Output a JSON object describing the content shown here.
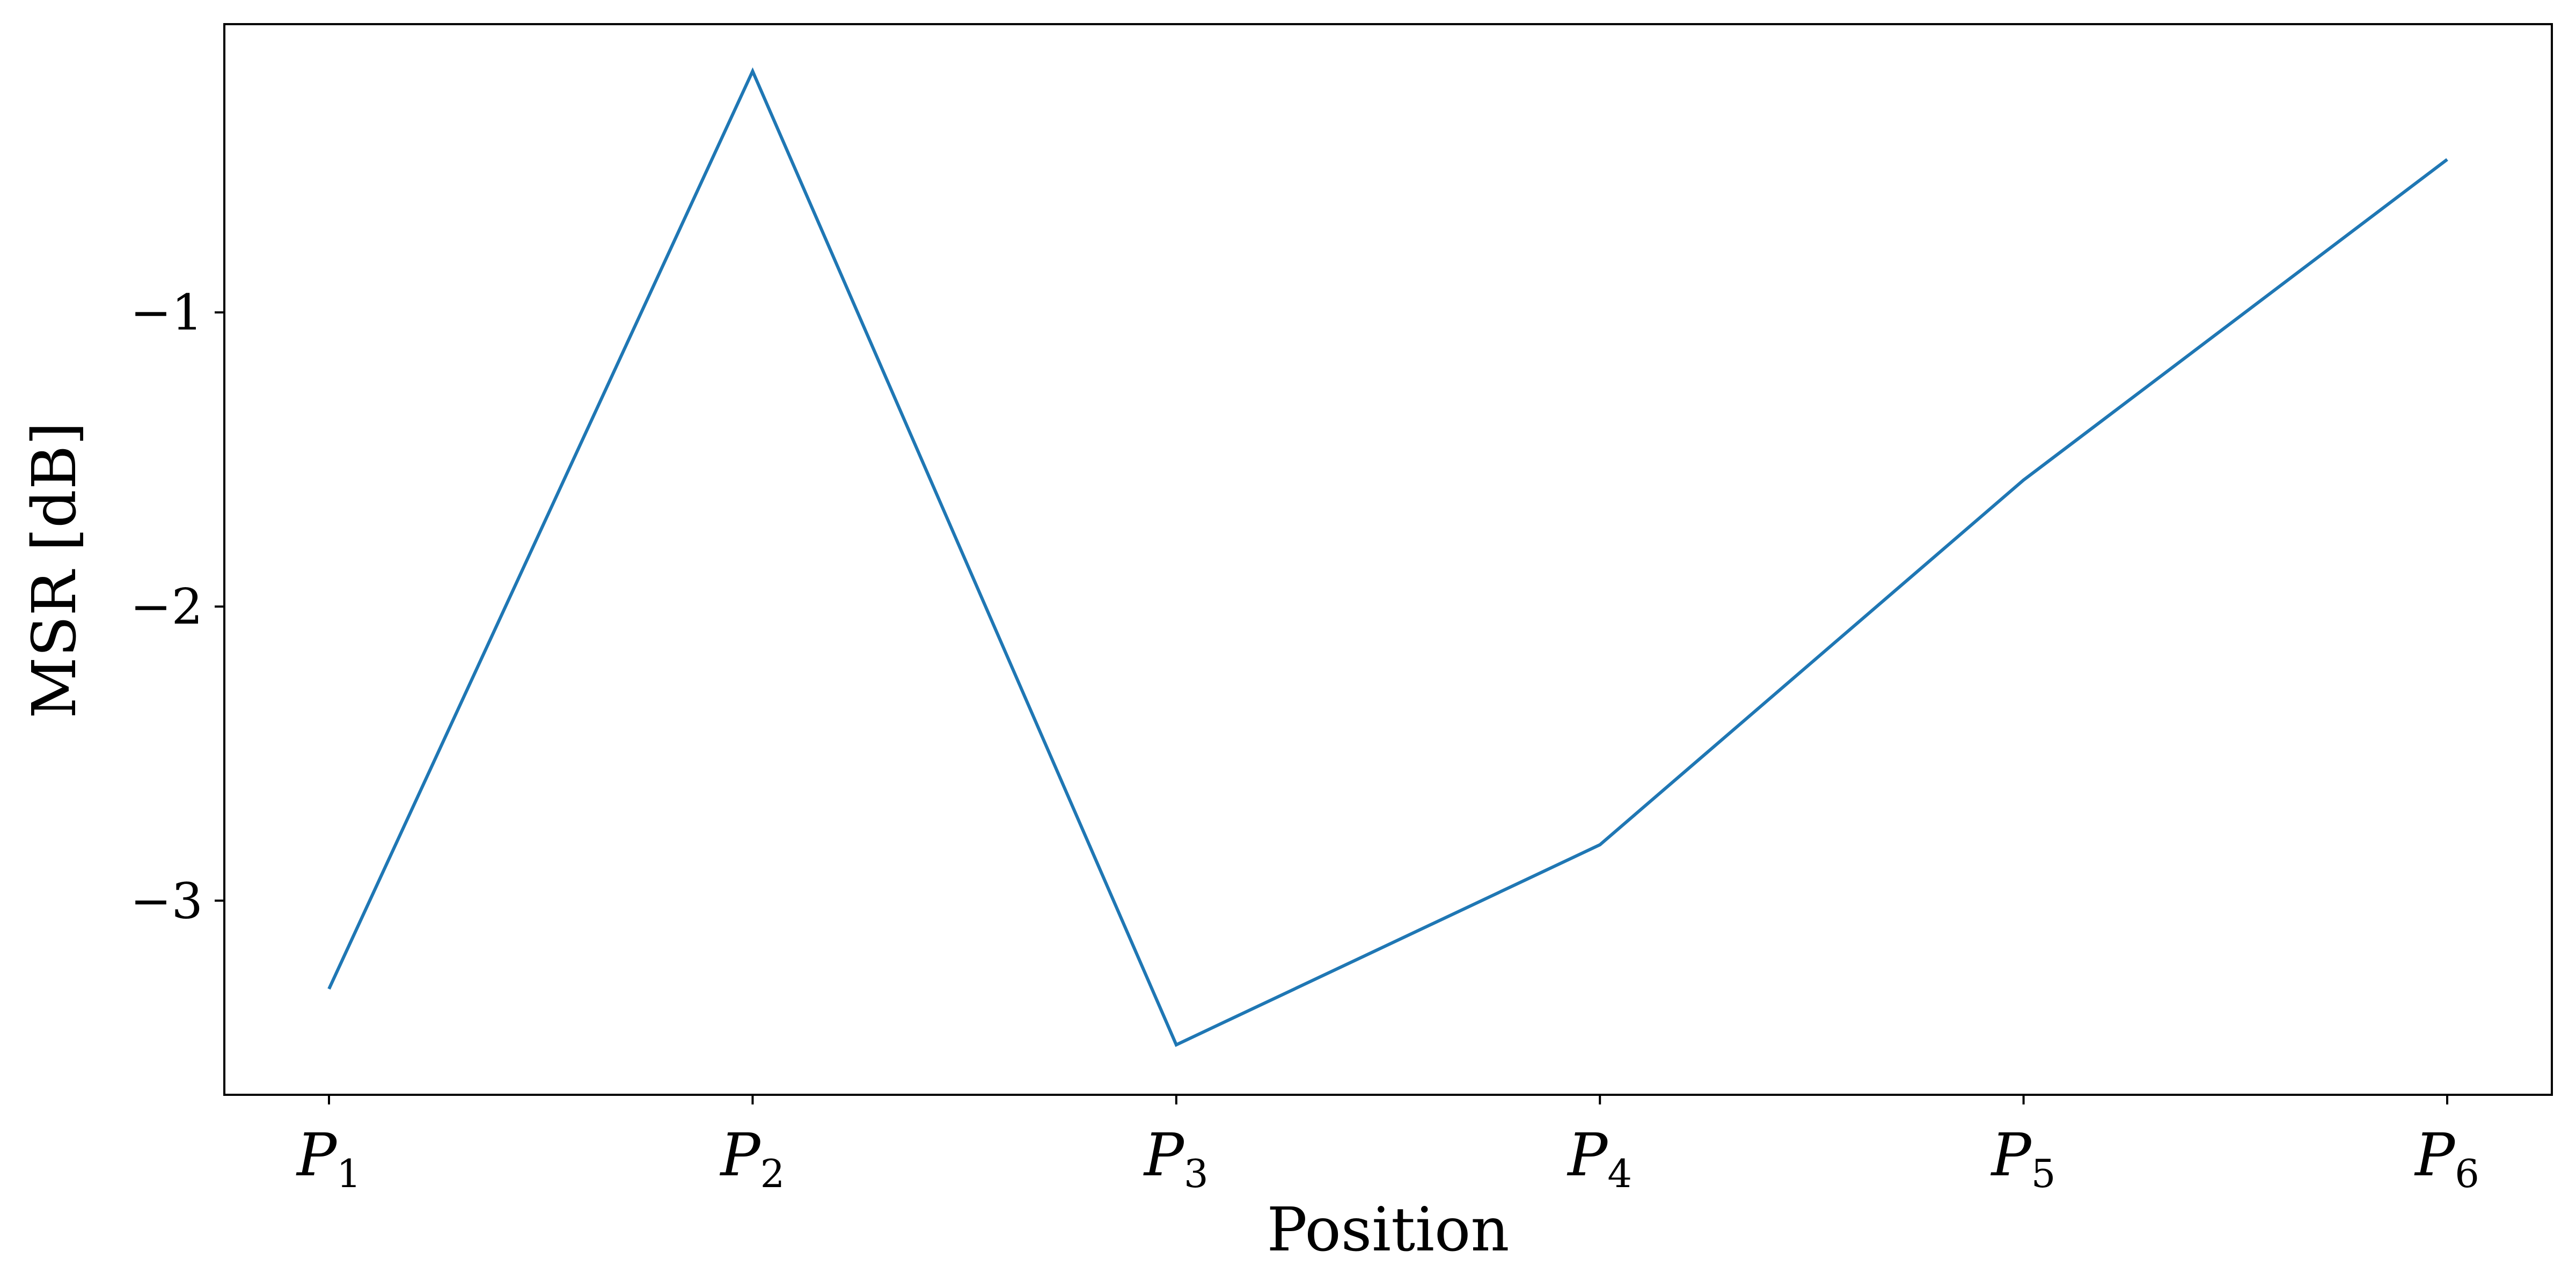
{
  "chart_data": {
    "type": "line",
    "categories": [
      {
        "base": "P",
        "sub": "1"
      },
      {
        "base": "P",
        "sub": "2"
      },
      {
        "base": "P",
        "sub": "3"
      },
      {
        "base": "P",
        "sub": "4"
      },
      {
        "base": "P",
        "sub": "5"
      },
      {
        "base": "P",
        "sub": "6"
      }
    ],
    "series": [
      {
        "values": [
          -3.3,
          -0.18,
          -3.49,
          -2.81,
          -1.57,
          -0.48
        ],
        "color": "#1f77b4"
      }
    ],
    "xlabel": "Position",
    "ylabel": "MSR [dB]",
    "yticks": [
      -1,
      -2,
      -3
    ],
    "ytick_labels": [
      "−1",
      "−2",
      "−3"
    ],
    "ylim": [
      -3.66,
      -0.02
    ],
    "grid": false
  }
}
